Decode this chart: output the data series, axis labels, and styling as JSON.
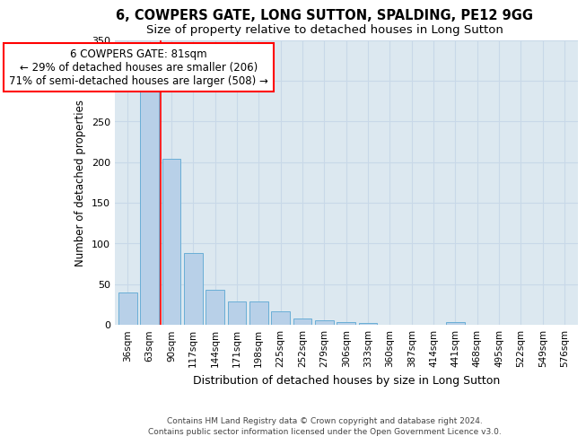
{
  "title1": "6, COWPERS GATE, LONG SUTTON, SPALDING, PE12 9GG",
  "title2": "Size of property relative to detached houses in Long Sutton",
  "xlabel": "Distribution of detached houses by size in Long Sutton",
  "ylabel": "Number of detached properties",
  "categories": [
    "36sqm",
    "63sqm",
    "90sqm",
    "117sqm",
    "144sqm",
    "171sqm",
    "198sqm",
    "225sqm",
    "252sqm",
    "279sqm",
    "306sqm",
    "333sqm",
    "360sqm",
    "387sqm",
    "414sqm",
    "441sqm",
    "468sqm",
    "495sqm",
    "522sqm",
    "549sqm",
    "576sqm"
  ],
  "values": [
    40,
    290,
    204,
    88,
    43,
    29,
    29,
    16,
    8,
    5,
    3,
    2,
    0,
    0,
    0,
    3,
    0,
    0,
    0,
    0,
    0
  ],
  "bar_color": "#b8d0e8",
  "bar_edge_color": "#6aaed6",
  "grid_color": "#c8d8e8",
  "bg_color": "#dce8f0",
  "red_line_x": 1.5,
  "annotation_line1": "6 COWPERS GATE: 81sqm",
  "annotation_line2": "← 29% of detached houses are smaller (206)",
  "annotation_line3": "71% of semi-detached houses are larger (508) →",
  "annotation_box_color": "white",
  "annotation_box_edge": "red",
  "footer": "Contains HM Land Registry data © Crown copyright and database right 2024.\nContains public sector information licensed under the Open Government Licence v3.0.",
  "ylim": [
    0,
    350
  ],
  "yticks": [
    0,
    50,
    100,
    150,
    200,
    250,
    300,
    350
  ],
  "title1_fontsize": 10.5,
  "title2_fontsize": 9.5,
  "xlabel_fontsize": 9,
  "ylabel_fontsize": 8.5,
  "tick_fontsize": 7.5,
  "footer_fontsize": 6.5,
  "annot_fontsize": 8.5
}
